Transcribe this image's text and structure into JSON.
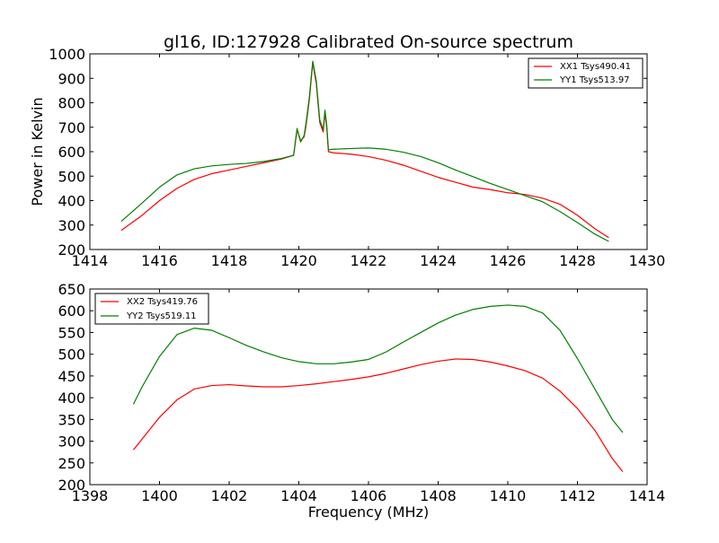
{
  "chart_data": [
    {
      "type": "line",
      "title": "gl16, ID:127928 Calibrated On-source spectrum",
      "xlabel": "",
      "ylabel": "Power in Kelvin",
      "xlim": [
        1414,
        1430
      ],
      "ylim": [
        200,
        1000
      ],
      "xticks": [
        1414,
        1416,
        1418,
        1420,
        1422,
        1424,
        1426,
        1428,
        1430
      ],
      "yticks": [
        200,
        300,
        400,
        500,
        600,
        700,
        800,
        900,
        1000
      ],
      "grid": false,
      "legend_position": "top-right",
      "series": [
        {
          "name": "XX1 Tsys490.41",
          "color": "#ff0000",
          "x": [
            1414.9,
            1415.5,
            1416.0,
            1416.5,
            1417.0,
            1417.5,
            1418.0,
            1418.5,
            1419.0,
            1419.5,
            1419.85,
            1419.95,
            1420.05,
            1420.15,
            1420.2,
            1420.3,
            1420.4,
            1420.45,
            1420.5,
            1420.6,
            1420.7,
            1420.75,
            1420.8,
            1420.85,
            1421.0,
            1421.5,
            1422.0,
            1422.5,
            1423.0,
            1423.5,
            1424.0,
            1424.5,
            1425.0,
            1425.5,
            1426.0,
            1426.5,
            1427.0,
            1427.5,
            1428.0,
            1428.5,
            1428.9
          ],
          "y": [
            278,
            340,
            400,
            450,
            487,
            510,
            525,
            540,
            555,
            570,
            585,
            690,
            645,
            660,
            700,
            810,
            965,
            920,
            880,
            720,
            680,
            760,
            700,
            600,
            595,
            590,
            580,
            565,
            545,
            520,
            495,
            475,
            455,
            445,
            432,
            425,
            410,
            385,
            340,
            285,
            248
          ]
        },
        {
          "name": "YY1 Tsys513.97",
          "color": "#008000",
          "x": [
            1414.9,
            1415.5,
            1416.0,
            1416.5,
            1417.0,
            1417.5,
            1418.0,
            1418.5,
            1419.0,
            1419.5,
            1419.85,
            1419.95,
            1420.05,
            1420.15,
            1420.2,
            1420.3,
            1420.4,
            1420.45,
            1420.5,
            1420.6,
            1420.7,
            1420.75,
            1420.8,
            1420.85,
            1421.0,
            1421.5,
            1422.0,
            1422.5,
            1423.0,
            1423.5,
            1424.0,
            1424.5,
            1425.0,
            1425.5,
            1426.0,
            1426.5,
            1427.0,
            1427.5,
            1428.0,
            1428.5,
            1428.9
          ],
          "y": [
            315,
            390,
            455,
            505,
            530,
            542,
            548,
            552,
            560,
            572,
            585,
            695,
            640,
            665,
            710,
            820,
            970,
            930,
            890,
            730,
            690,
            770,
            710,
            608,
            610,
            613,
            615,
            610,
            598,
            580,
            555,
            525,
            498,
            470,
            445,
            420,
            395,
            355,
            310,
            263,
            233
          ]
        }
      ]
    },
    {
      "type": "line",
      "title": "",
      "xlabel": "Frequency (MHz)",
      "ylabel": "",
      "xlim": [
        1398,
        1414
      ],
      "ylim": [
        200,
        650
      ],
      "xticks": [
        1398,
        1400,
        1402,
        1404,
        1406,
        1408,
        1410,
        1412,
        1414
      ],
      "yticks": [
        200,
        250,
        300,
        350,
        400,
        450,
        500,
        550,
        600,
        650
      ],
      "grid": false,
      "legend_position": "top-left",
      "series": [
        {
          "name": "XX2 Tsys419.76",
          "color": "#ff0000",
          "x": [
            1399.25,
            1399.5,
            1400.0,
            1400.5,
            1401.0,
            1401.5,
            1402.0,
            1402.5,
            1403.0,
            1403.5,
            1404.0,
            1404.5,
            1405.0,
            1405.5,
            1406.0,
            1406.5,
            1407.0,
            1407.5,
            1408.0,
            1408.5,
            1409.0,
            1409.5,
            1410.0,
            1410.5,
            1411.0,
            1411.5,
            1412.0,
            1412.5,
            1413.0,
            1413.3
          ],
          "y": [
            280,
            305,
            355,
            395,
            420,
            428,
            430,
            427,
            425,
            425,
            428,
            432,
            437,
            442,
            448,
            456,
            466,
            476,
            484,
            489,
            488,
            482,
            473,
            462,
            445,
            415,
            375,
            325,
            260,
            230
          ]
        },
        {
          "name": "YY2 Tsys519.11",
          "color": "#008000",
          "x": [
            1399.25,
            1399.5,
            1400.0,
            1400.5,
            1401.0,
            1401.5,
            1402.0,
            1402.5,
            1403.0,
            1403.5,
            1404.0,
            1404.5,
            1405.0,
            1405.5,
            1406.0,
            1406.5,
            1407.0,
            1407.5,
            1408.0,
            1408.5,
            1409.0,
            1409.5,
            1410.0,
            1410.5,
            1411.0,
            1411.5,
            1412.0,
            1412.5,
            1413.0,
            1413.3
          ],
          "y": [
            385,
            425,
            495,
            545,
            560,
            555,
            538,
            520,
            505,
            492,
            483,
            478,
            478,
            482,
            488,
            505,
            528,
            550,
            572,
            590,
            603,
            610,
            613,
            610,
            595,
            555,
            490,
            420,
            350,
            320
          ]
        }
      ]
    }
  ]
}
